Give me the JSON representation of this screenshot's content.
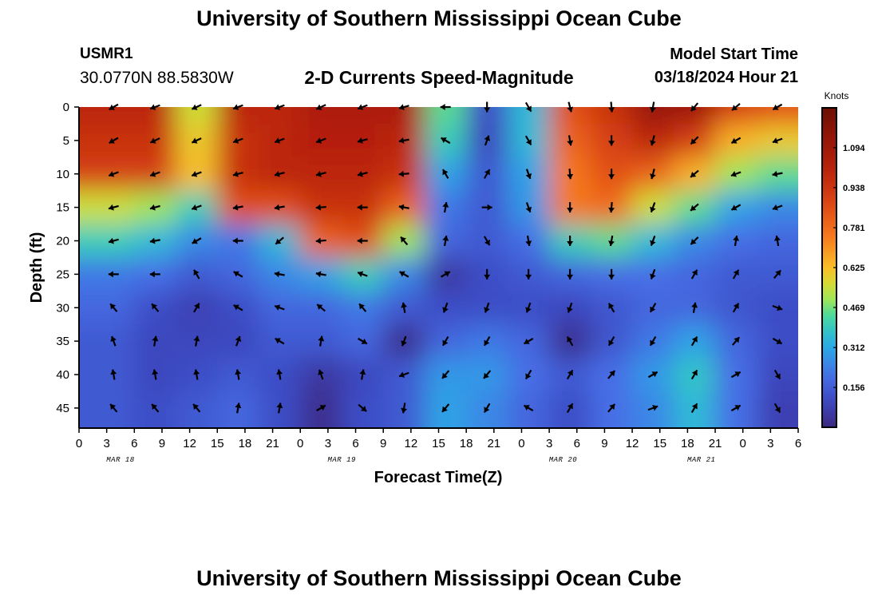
{
  "header": {
    "title": "University of Southern Mississippi Ocean Cube",
    "footer_title": "University of Southern Mississippi Ocean Cube",
    "station": "USMR1",
    "coords": "30.0770N  88.5830W",
    "subtitle": "2-D Currents Speed-Magnitude",
    "model_start_label": "Model Start Time",
    "model_start_value": "03/18/2024 Hour 21"
  },
  "chart_data": {
    "type": "heatmap",
    "xlabel": "Forecast Time(Z)",
    "ylabel": "Depth (ft)",
    "colorbar_label": "Knots",
    "colorbar_ticks": [
      "0.156",
      "0.312",
      "0.469",
      "0.625",
      "0.781",
      "0.938",
      "1.094"
    ],
    "colorbar_values": [
      0.156,
      0.312,
      0.469,
      0.625,
      0.781,
      0.938,
      1.094
    ],
    "colorbar_range": [
      0,
      1.25
    ],
    "x_tick_labels": [
      "0",
      "3",
      "6",
      "9",
      "12",
      "15",
      "18",
      "21",
      "0",
      "3",
      "6",
      "9",
      "12",
      "15",
      "18",
      "21",
      "0",
      "3",
      "6",
      "9",
      "12",
      "15",
      "18",
      "21",
      "0",
      "3",
      "6"
    ],
    "date_labels": [
      "MAR 18",
      "MAR 19",
      "MAR 20",
      "MAR 21"
    ],
    "date_label_hours": [
      4.5,
      28.5,
      52.5,
      67.5
    ],
    "xlim_hours": [
      0,
      78
    ],
    "y_ticks": [
      0,
      5,
      10,
      15,
      20,
      25,
      30,
      35,
      40,
      45
    ],
    "ylim_ft": [
      0,
      48
    ],
    "arrow_hours": [
      3.75,
      8.25,
      12.75,
      17.25,
      21.75,
      26.25,
      30.75,
      35.25,
      39.75,
      44.25,
      48.75,
      53.25,
      57.75,
      62.25,
      66.75,
      71.25,
      75.75
    ],
    "depths": [
      0,
      5,
      10,
      15,
      20,
      25,
      30,
      35,
      40,
      45
    ],
    "speed_grid": [
      [
        1.0,
        1.0,
        0.55,
        1.0,
        1.0,
        1.05,
        1.05,
        1.05,
        0.45,
        0.12,
        0.35,
        0.85,
        0.95,
        1.12,
        1.1,
        0.9,
        0.85
      ],
      [
        0.95,
        0.95,
        0.6,
        0.95,
        1.0,
        1.02,
        1.02,
        1.0,
        0.4,
        0.1,
        0.35,
        0.8,
        0.9,
        1.0,
        0.9,
        0.65,
        0.6
      ],
      [
        0.9,
        0.9,
        0.62,
        0.95,
        1.0,
        1.0,
        1.0,
        0.95,
        0.3,
        0.15,
        0.3,
        0.75,
        0.85,
        0.8,
        0.65,
        0.5,
        0.45
      ],
      [
        0.55,
        0.5,
        0.4,
        0.85,
        0.85,
        0.95,
        0.95,
        0.8,
        0.22,
        0.15,
        0.28,
        0.75,
        0.78,
        0.55,
        0.45,
        0.3,
        0.25
      ],
      [
        0.4,
        0.35,
        0.25,
        0.22,
        0.35,
        0.8,
        0.85,
        0.5,
        0.18,
        0.15,
        0.2,
        0.4,
        0.45,
        0.35,
        0.25,
        0.2,
        0.18
      ],
      [
        0.22,
        0.2,
        0.15,
        0.18,
        0.25,
        0.3,
        0.4,
        0.25,
        0.05,
        0.12,
        0.15,
        0.18,
        0.2,
        0.2,
        0.18,
        0.15,
        0.15
      ],
      [
        0.18,
        0.12,
        0.08,
        0.12,
        0.18,
        0.18,
        0.22,
        0.15,
        0.12,
        0.12,
        0.12,
        0.1,
        0.14,
        0.18,
        0.18,
        0.14,
        0.12
      ],
      [
        0.15,
        0.1,
        0.1,
        0.1,
        0.15,
        0.15,
        0.18,
        0.02,
        0.18,
        0.22,
        0.18,
        0.02,
        0.14,
        0.22,
        0.3,
        0.18,
        0.12
      ],
      [
        0.15,
        0.1,
        0.12,
        0.15,
        0.12,
        0.05,
        0.1,
        0.15,
        0.28,
        0.28,
        0.2,
        0.15,
        0.2,
        0.28,
        0.38,
        0.2,
        0.1
      ],
      [
        0.15,
        0.12,
        0.15,
        0.18,
        0.12,
        0.02,
        0.12,
        0.15,
        0.3,
        0.25,
        0.18,
        0.12,
        0.2,
        0.25,
        0.35,
        0.2,
        0.08
      ]
    ],
    "direction_grid_deg": [
      [
        240,
        250,
        245,
        250,
        250,
        245,
        250,
        255,
        270,
        180,
        150,
        165,
        175,
        190,
        220,
        230,
        240
      ],
      [
        240,
        245,
        245,
        250,
        250,
        250,
        255,
        260,
        300,
        20,
        150,
        170,
        180,
        195,
        225,
        240,
        250
      ],
      [
        250,
        250,
        250,
        255,
        255,
        255,
        255,
        265,
        330,
        30,
        160,
        175,
        180,
        195,
        230,
        250,
        260
      ],
      [
        255,
        255,
        250,
        260,
        260,
        265,
        270,
        280,
        10,
        90,
        160,
        180,
        185,
        200,
        230,
        240,
        250
      ],
      [
        255,
        260,
        240,
        270,
        230,
        265,
        270,
        320,
        10,
        150,
        170,
        180,
        190,
        200,
        225,
        10,
        350
      ],
      [
        270,
        270,
        330,
        300,
        280,
        280,
        290,
        300,
        60,
        180,
        180,
        180,
        180,
        200,
        30,
        30,
        40
      ],
      [
        320,
        320,
        30,
        300,
        290,
        310,
        320,
        350,
        200,
        200,
        200,
        200,
        330,
        210,
        10,
        30,
        110
      ],
      [
        340,
        10,
        10,
        20,
        300,
        10,
        120,
        200,
        210,
        210,
        240,
        330,
        210,
        210,
        30,
        40,
        120
      ],
      [
        350,
        350,
        350,
        350,
        350,
        340,
        10,
        250,
        220,
        220,
        210,
        30,
        40,
        60,
        30,
        60,
        150
      ],
      [
        320,
        320,
        320,
        10,
        10,
        60,
        130,
        190,
        220,
        210,
        300,
        30,
        40,
        70,
        30,
        60,
        150
      ]
    ]
  }
}
